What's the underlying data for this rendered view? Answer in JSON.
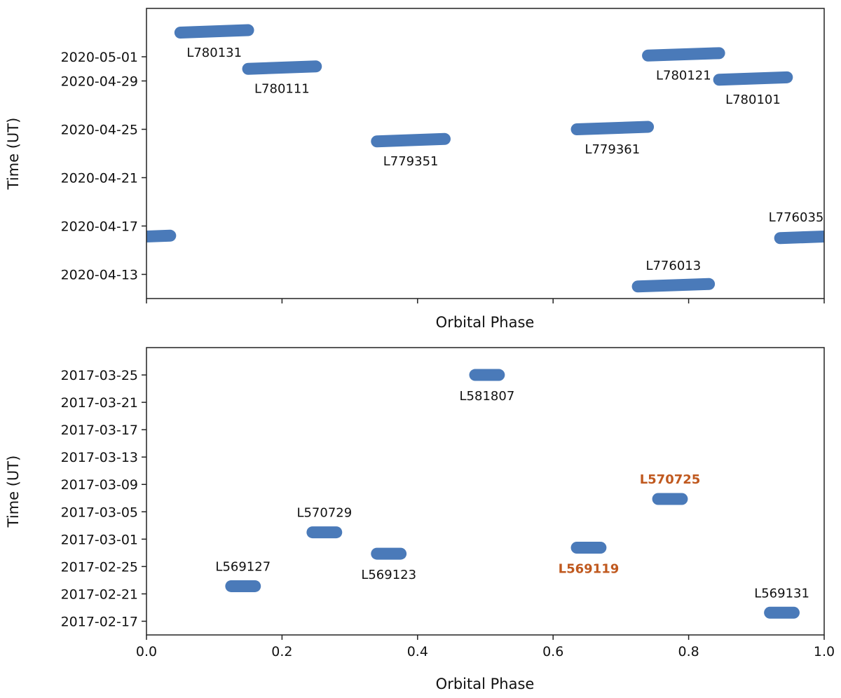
{
  "colors": {
    "bar": "#4a7ab9",
    "highlight_label": "#c0591f",
    "axis": "#222222"
  },
  "chart_data": [
    {
      "type": "scatter",
      "panel": "top",
      "title": "",
      "xlabel": "Orbital Phase",
      "ylabel": "Time (UT)",
      "xlim": [
        0.0,
        1.0
      ],
      "x_ticks": [
        0.0,
        0.2,
        0.4,
        0.6,
        0.8,
        1.0
      ],
      "x_tick_labels_visible": false,
      "y_axis_type": "date",
      "ylim": [
        "2020-04-11",
        "2020-05-05"
      ],
      "y_ticks": [
        "2020-04-13",
        "2020-04-17",
        "2020-04-21",
        "2020-04-25",
        "2020-04-29",
        "2020-05-01"
      ],
      "y_tick_labels": [
        "2020-04-13",
        "2020-04-17",
        "2020-04-21",
        "2020-04-25",
        "2020-04-29",
        "2020-05-01"
      ],
      "grid": false,
      "observations": [
        {
          "label": "L780131",
          "phase_start": 0.05,
          "phase_end": 0.15,
          "time_start": "2020-05-03T00:00",
          "time_end": "2020-05-03T04:48",
          "label_pos": "below",
          "highlight": false
        },
        {
          "label": "L780111",
          "phase_start": 0.15,
          "phase_end": 0.25,
          "time_start": "2020-04-30T00:00",
          "time_end": "2020-04-30T04:48",
          "label_pos": "below",
          "highlight": false
        },
        {
          "label": "L779351",
          "phase_start": 0.34,
          "phase_end": 0.44,
          "time_start": "2020-04-24T00:00",
          "time_end": "2020-04-24T04:48",
          "label_pos": "below",
          "highlight": false
        },
        {
          "label": "L779361",
          "phase_start": 0.635,
          "phase_end": 0.74,
          "time_start": "2020-04-25T00:00",
          "time_end": "2020-04-25T04:48",
          "label_pos": "below",
          "highlight": false
        },
        {
          "label": "L780121",
          "phase_start": 0.74,
          "phase_end": 0.845,
          "time_start": "2020-05-01T02:24",
          "time_end": "2020-05-01T07:12",
          "label_pos": "below",
          "highlight": false
        },
        {
          "label": "L780101",
          "phase_start": 0.845,
          "phase_end": 0.945,
          "time_start": "2020-04-29T02:24",
          "time_end": "2020-04-29T07:12",
          "label_pos": "below",
          "highlight": false
        },
        {
          "label": "L776013",
          "phase_start": 0.725,
          "phase_end": 0.83,
          "time_start": "2020-04-12T00:00",
          "time_end": "2020-04-12T04:48",
          "label_pos": "above",
          "highlight": false
        },
        {
          "label": "L776035",
          "phase_start": 0.935,
          "phase_end": 1.035,
          "time_start": "2020-04-16T00:00",
          "time_end": "2020-04-16T04:48",
          "label_pos": "above",
          "highlight": false
        }
      ]
    },
    {
      "type": "scatter",
      "panel": "bottom",
      "title": "",
      "xlabel": "Orbital Phase",
      "ylabel": "Time (UT)",
      "xlim": [
        0.0,
        1.0
      ],
      "x_ticks": [
        0.0,
        0.2,
        0.4,
        0.6,
        0.8,
        1.0
      ],
      "x_tick_labels": [
        "0.0",
        "0.2",
        "0.4",
        "0.6",
        "0.8",
        "1.0"
      ],
      "y_axis_type": "date",
      "ylim": [
        "2017-02-15",
        "2017-03-29"
      ],
      "y_ticks": [
        "2017-02-17",
        "2017-02-21",
        "2017-02-25",
        "2017-03-01",
        "2017-03-05",
        "2017-03-09",
        "2017-03-13",
        "2017-03-17",
        "2017-03-21",
        "2017-03-25"
      ],
      "y_tick_labels": [
        "2017-02-17",
        "2017-02-21",
        "2017-02-25",
        "2017-03-01",
        "2017-03-05",
        "2017-03-09",
        "2017-03-13",
        "2017-03-17",
        "2017-03-21",
        "2017-03-25"
      ],
      "grid": false,
      "observations": [
        {
          "label": "L569127",
          "phase_start": 0.125,
          "phase_end": 0.16,
          "time_start": "2017-02-22T03:00",
          "time_end": "2017-02-22T03:00",
          "label_pos": "above",
          "highlight": false
        },
        {
          "label": "L570729",
          "phase_start": 0.245,
          "phase_end": 0.28,
          "time_start": "2017-03-02T00:00",
          "time_end": "2017-03-02T00:00",
          "label_pos": "above",
          "highlight": false
        },
        {
          "label": "L569123",
          "phase_start": 0.34,
          "phase_end": 0.375,
          "time_start": "2017-02-26T21:00",
          "time_end": "2017-02-26T21:00",
          "label_pos": "below",
          "highlight": false
        },
        {
          "label": "L581807",
          "phase_start": 0.485,
          "phase_end": 0.52,
          "time_start": "2017-03-25T00:00",
          "time_end": "2017-03-25T00:00",
          "label_pos": "below",
          "highlight": false
        },
        {
          "label": "L569119",
          "phase_start": 0.635,
          "phase_end": 0.67,
          "time_start": "2017-02-27T18:00",
          "time_end": "2017-02-27T18:00",
          "label_pos": "below",
          "highlight": true
        },
        {
          "label": "L570725",
          "phase_start": 0.755,
          "phase_end": 0.79,
          "time_start": "2017-03-06T21:00",
          "time_end": "2017-03-06T21:00",
          "label_pos": "above",
          "highlight": true
        },
        {
          "label": "L569131",
          "phase_start": 0.92,
          "phase_end": 0.955,
          "time_start": "2017-02-18T06:00",
          "time_end": "2017-02-18T06:00",
          "label_pos": "above",
          "highlight": false
        }
      ]
    }
  ]
}
